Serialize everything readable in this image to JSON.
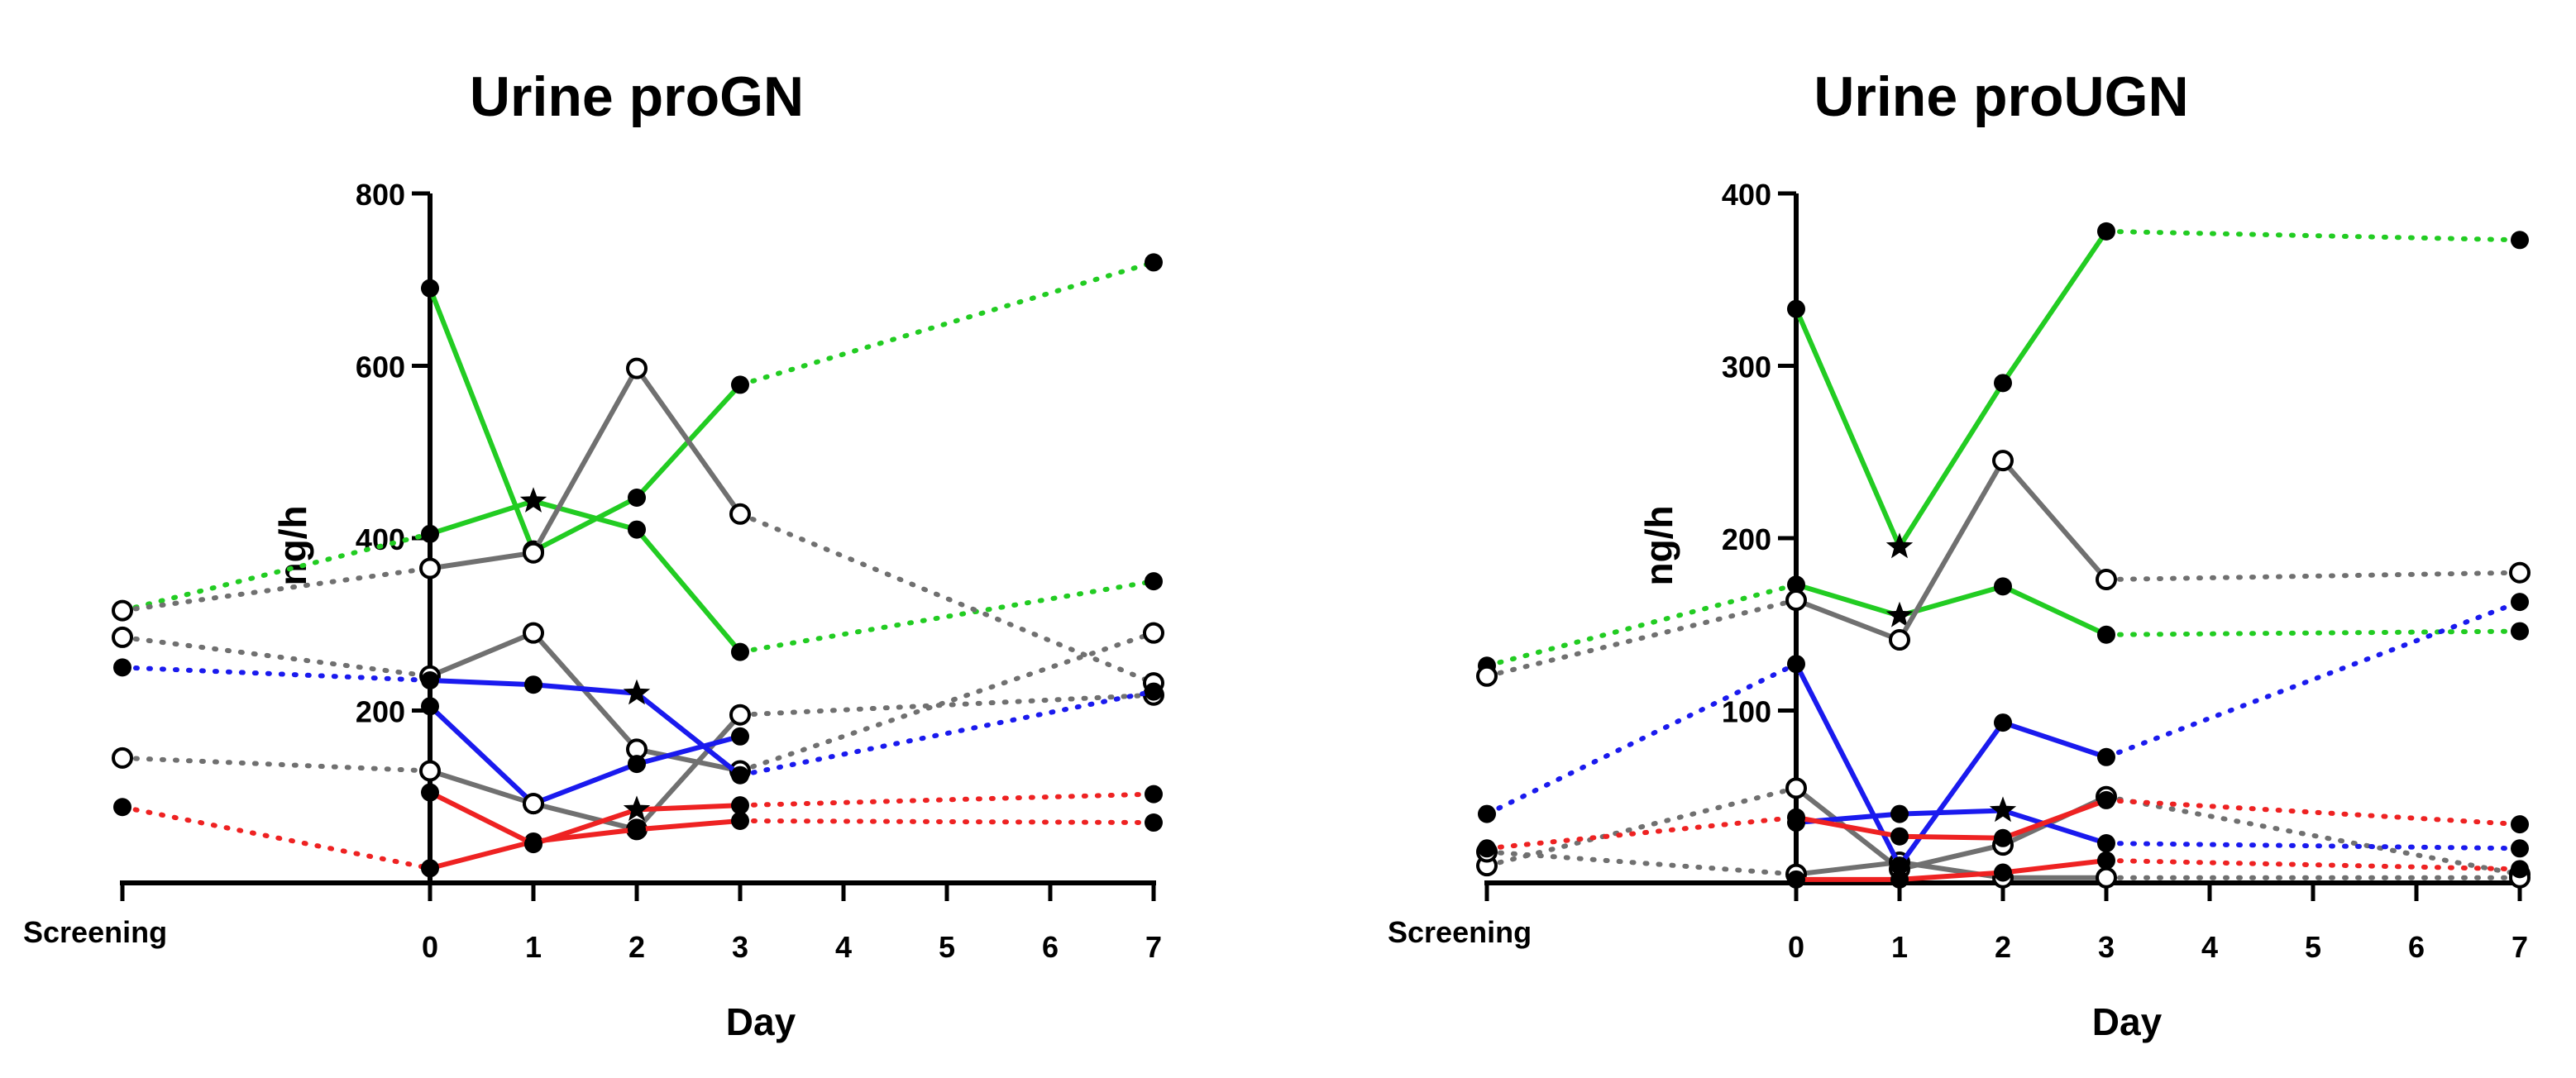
{
  "chart_data": [
    {
      "type": "line",
      "title": "Urine proGN",
      "xlabel": "Day",
      "ylabel": "ng/h",
      "ylim": [
        0,
        800
      ],
      "yticks": [
        200,
        400,
        600,
        800
      ],
      "xticks": [
        "Screening",
        "0",
        "1",
        "2",
        "3",
        "4",
        "5",
        "6",
        "7"
      ],
      "grid": false,
      "legend": "none",
      "series": [
        {
          "name": "green-a",
          "color": "#22cc22",
          "marker": "filled",
          "screening": null,
          "values": [
            690,
            385,
            447,
            578
          ],
          "day7": 720,
          "day1_marker": "open"
        },
        {
          "name": "green-b",
          "color": "#22cc22",
          "marker": "filled",
          "screening": 316,
          "values": [
            405,
            443,
            410,
            268
          ],
          "day7": 350,
          "day1_marker": "star"
        },
        {
          "name": "gray-a",
          "color": "#707070",
          "marker": "open",
          "screening": 316,
          "values": [
            365,
            383,
            597,
            428
          ],
          "day7": 232
        },
        {
          "name": "gray-b",
          "color": "#707070",
          "marker": "open",
          "screening": 285,
          "values": [
            240,
            290,
            155,
            130
          ],
          "day7": 290
        },
        {
          "name": "gray-c",
          "color": "#707070",
          "marker": "open",
          "screening": 145,
          "values": [
            130,
            92,
            62,
            195
          ],
          "day7": 218
        },
        {
          "name": "blue-a",
          "color": "#1a1aee",
          "marker": "filled",
          "screening": 250,
          "values": [
            235,
            230,
            220,
            125
          ],
          "day7": 222,
          "day2_marker": "star"
        },
        {
          "name": "blue-b",
          "color": "#1a1aee",
          "marker": "filled",
          "screening": null,
          "values": [
            205,
            92,
            138,
            170
          ],
          "day7": null,
          "day1_marker": "open"
        },
        {
          "name": "red-a",
          "color": "#ee2222",
          "marker": "filled",
          "screening": 88,
          "values": [
            17,
            48,
            62,
            72
          ],
          "day7": 70
        },
        {
          "name": "red-b",
          "color": "#ee2222",
          "marker": "filled",
          "screening": null,
          "values": [
            105,
            45,
            85,
            90
          ],
          "day7": 103,
          "day2_marker": "star"
        }
      ]
    },
    {
      "type": "line",
      "title": "Urine proUGN",
      "xlabel": "Day",
      "ylabel": "ng/h",
      "ylim": [
        0,
        400
      ],
      "yticks": [
        100,
        200,
        300,
        400
      ],
      "xticks": [
        "Screening",
        "0",
        "1",
        "2",
        "3",
        "4",
        "5",
        "6",
        "7"
      ],
      "grid": false,
      "legend": "none",
      "series": [
        {
          "name": "green-a",
          "color": "#22cc22",
          "marker": "filled",
          "screening": null,
          "values": [
            333,
            195,
            290,
            378
          ],
          "day7": 373,
          "day1_marker": "star"
        },
        {
          "name": "green-b",
          "color": "#22cc22",
          "marker": "filled",
          "screening": 126,
          "values": [
            173,
            155,
            172,
            144
          ],
          "day7": 146,
          "day1_marker": "star"
        },
        {
          "name": "gray-a",
          "color": "#707070",
          "marker": "open",
          "screening": 120,
          "values": [
            164,
            141,
            245,
            176
          ],
          "day7": 180
        },
        {
          "name": "gray-b",
          "color": "#707070",
          "marker": "open",
          "screening": 10,
          "values": [
            55,
            8,
            22,
            50
          ],
          "day7": 5
        },
        {
          "name": "gray-c",
          "color": "#707070",
          "marker": "open",
          "screening": 18,
          "values": [
            5,
            12,
            3,
            3
          ],
          "day7": 3
        },
        {
          "name": "blue-a",
          "color": "#1a1aee",
          "marker": "filled",
          "screening": 40,
          "values": [
            127,
            10,
            93,
            73
          ],
          "day7": 163
        },
        {
          "name": "blue-b",
          "color": "#1a1aee",
          "marker": "filled",
          "screening": null,
          "values": [
            35,
            40,
            42,
            23
          ],
          "day7": 20,
          "day2_marker": "star"
        },
        {
          "name": "red-a",
          "color": "#ee2222",
          "marker": "filled",
          "screening": 20,
          "values": [
            38,
            27,
            26,
            48
          ],
          "day7": 34
        },
        {
          "name": "red-b",
          "color": "#ee2222",
          "marker": "filled",
          "screening": null,
          "values": [
            2,
            2,
            6,
            13
          ],
          "day7": 8
        }
      ]
    }
  ]
}
